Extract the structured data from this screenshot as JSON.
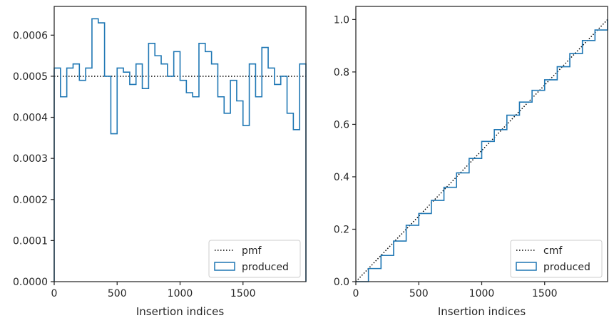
{
  "chart_data": [
    {
      "type": "step",
      "xlabel": "Insertion indices",
      "ylabel": "",
      "xlim": [
        0,
        2000
      ],
      "ylim": [
        0,
        0.00067
      ],
      "xticks": [
        0,
        500,
        1000,
        1500
      ],
      "xtick_labels": [
        "0",
        "500",
        "1000",
        "1500"
      ],
      "yticks": [
        0,
        0.0001,
        0.0002,
        0.0003,
        0.0004,
        0.0005,
        0.0006
      ],
      "ytick_labels": [
        "0.0000",
        "0.0001",
        "0.0002",
        "0.0003",
        "0.0004",
        "0.0005",
        "0.0006"
      ],
      "grid": false,
      "legend_position": "lower-right",
      "series": [
        {
          "name": "pmf",
          "style": "dotted",
          "color": "#000000",
          "x": [
            0,
            2000
          ],
          "values": [
            0.0005,
            0.0005
          ]
        },
        {
          "name": "produced",
          "style": "step-outline",
          "color": "#1f77b4",
          "bin_edges": [
            0,
            50,
            100,
            150,
            200,
            250,
            300,
            350,
            400,
            450,
            500,
            550,
            600,
            650,
            700,
            750,
            800,
            850,
            900,
            950,
            1000,
            1050,
            1100,
            1150,
            1200,
            1250,
            1300,
            1350,
            1400,
            1450,
            1500,
            1550,
            1600,
            1650,
            1700,
            1750,
            1800,
            1850,
            1900,
            1950,
            2000
          ],
          "values": [
            0.00052,
            0.00045,
            0.00052,
            0.00053,
            0.00049,
            0.00052,
            0.00064,
            0.00063,
            0.0005,
            0.00036,
            0.00052,
            0.00051,
            0.00048,
            0.00053,
            0.00047,
            0.00058,
            0.00055,
            0.00053,
            0.0005,
            0.00056,
            0.00049,
            0.00046,
            0.00045,
            0.00058,
            0.00056,
            0.00053,
            0.00045,
            0.00041,
            0.00049,
            0.00044,
            0.00038,
            0.00053,
            0.00045,
            0.00057,
            0.00052,
            0.00048,
            0.0005,
            0.00041,
            0.00037,
            0.00053
          ]
        }
      ]
    },
    {
      "type": "step",
      "xlabel": "Insertion indices",
      "ylabel": "",
      "xlim": [
        0,
        2000
      ],
      "ylim": [
        0,
        1.05
      ],
      "xticks": [
        0,
        500,
        1000,
        1500
      ],
      "xtick_labels": [
        "0",
        "500",
        "1000",
        "1500"
      ],
      "yticks": [
        0,
        0.2,
        0.4,
        0.6,
        0.8,
        1.0
      ],
      "ytick_labels": [
        "0.0",
        "0.2",
        "0.4",
        "0.6",
        "0.8",
        "1.0"
      ],
      "grid": false,
      "legend_position": "lower-right",
      "series": [
        {
          "name": "cmf",
          "style": "dotted",
          "color": "#000000",
          "x": [
            0,
            2000
          ],
          "values": [
            0,
            1
          ]
        },
        {
          "name": "produced",
          "style": "step-outline",
          "color": "#1f77b4",
          "x": [
            0,
            100,
            200,
            300,
            400,
            500,
            600,
            700,
            800,
            900,
            1000,
            1100,
            1200,
            1300,
            1400,
            1500,
            1600,
            1700,
            1800,
            1900,
            2000
          ],
          "values": [
            0.0,
            0.05,
            0.1,
            0.155,
            0.215,
            0.26,
            0.31,
            0.36,
            0.415,
            0.47,
            0.535,
            0.58,
            0.635,
            0.685,
            0.73,
            0.77,
            0.82,
            0.87,
            0.92,
            0.96,
            1.0
          ]
        }
      ]
    }
  ]
}
